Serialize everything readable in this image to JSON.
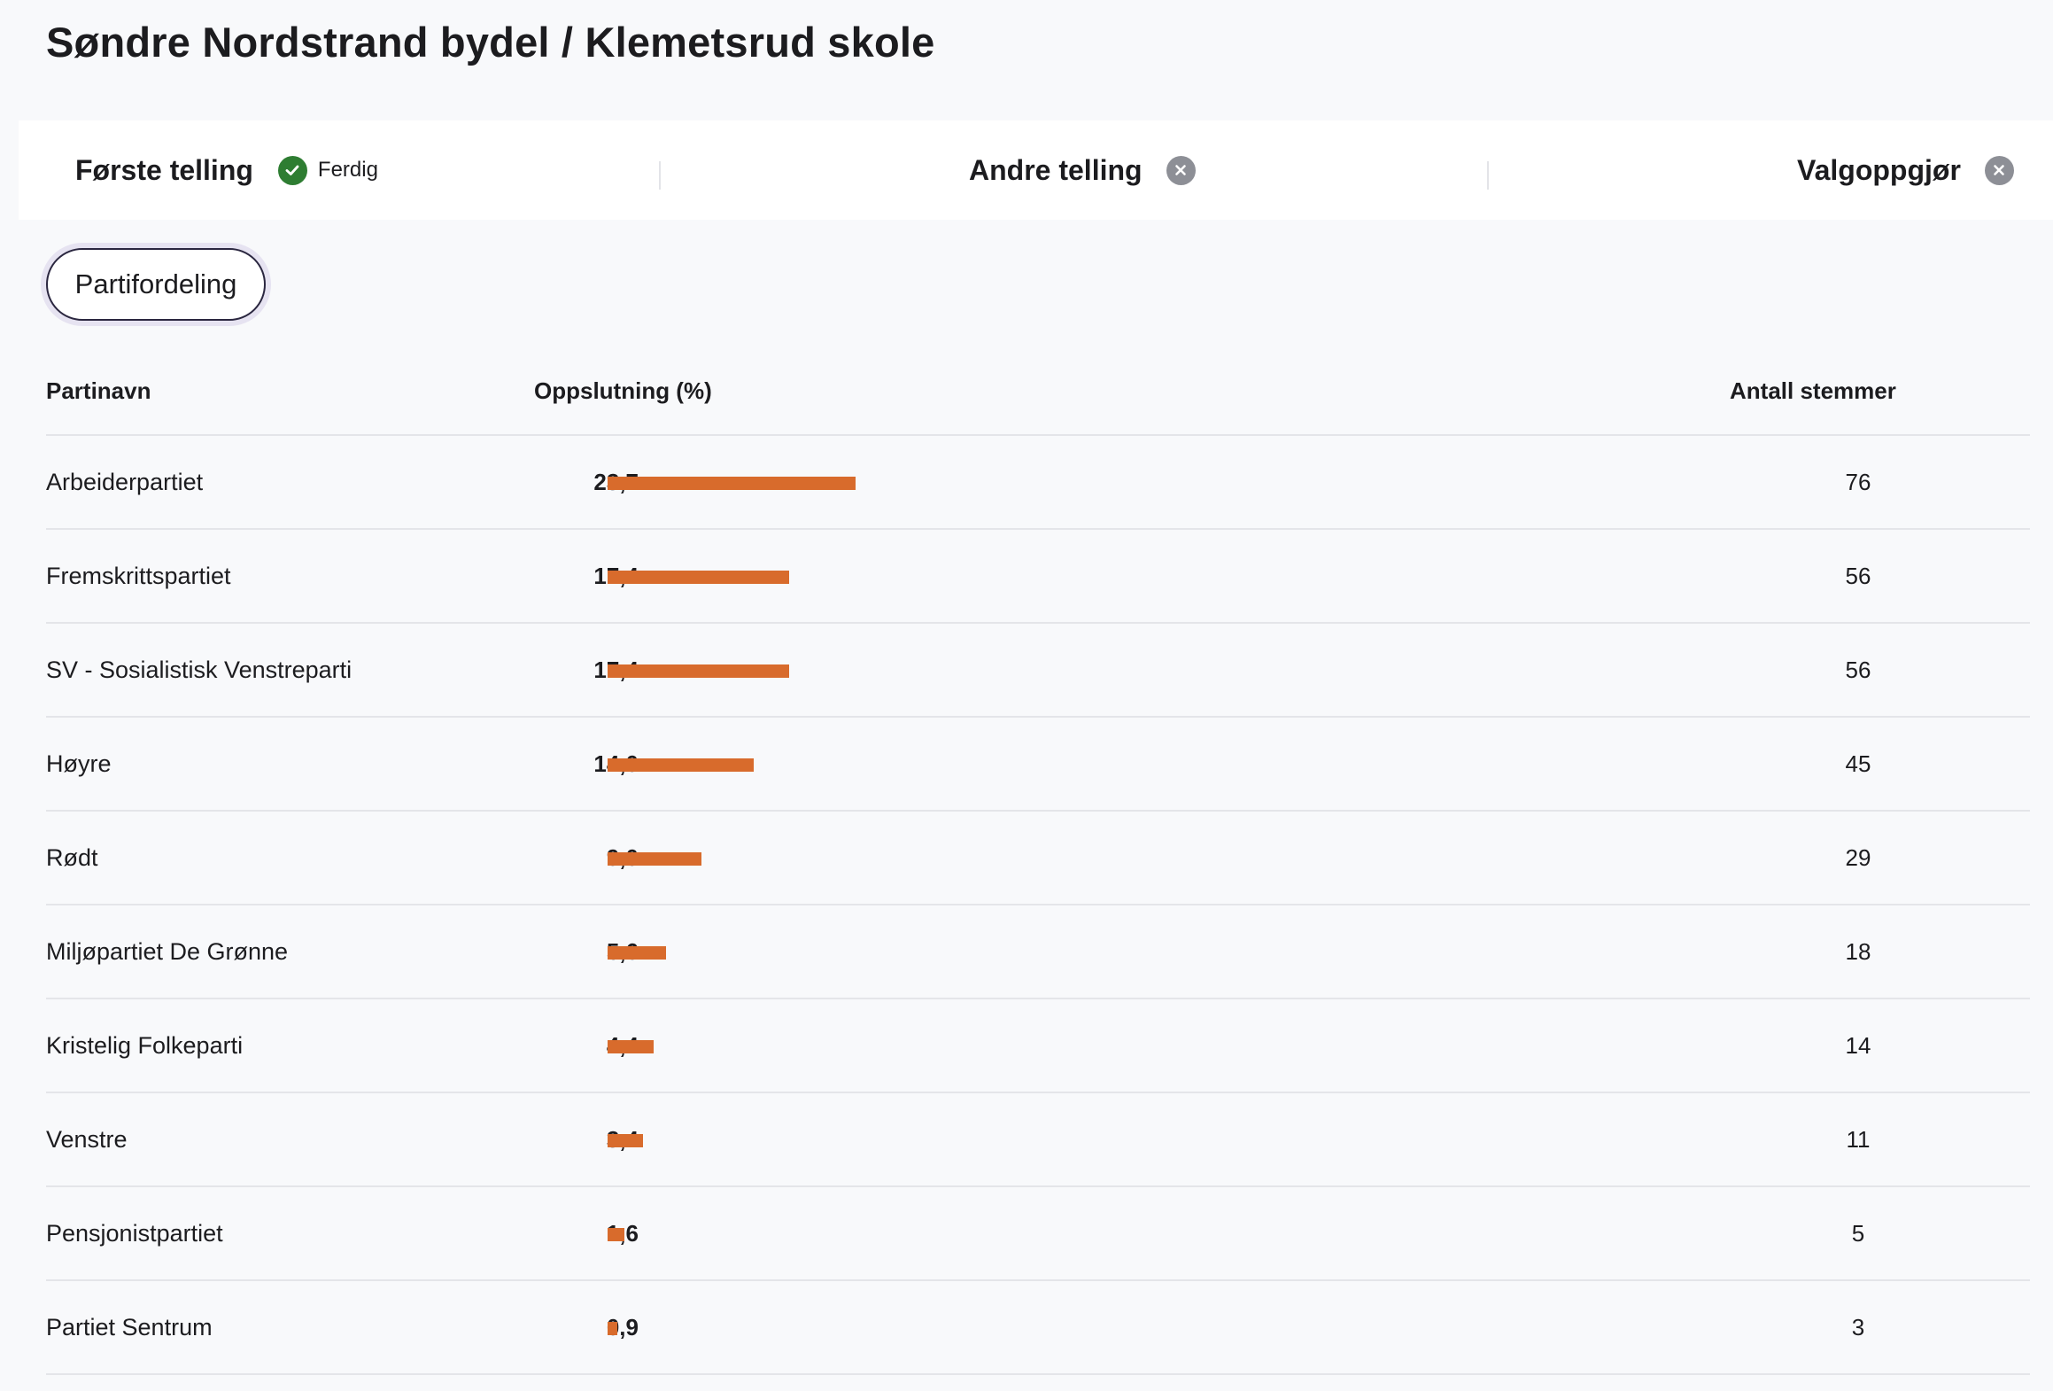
{
  "page": {
    "title": "Søndre Nordstrand bydel / Klemetsrud skole"
  },
  "stages": {
    "first": {
      "label": "Første telling",
      "status": "Ferdig",
      "status_icon": "check-circle-icon"
    },
    "second": {
      "label": "Andre telling",
      "status_icon": "x-circle-icon"
    },
    "settlement": {
      "label": "Valgoppgjør",
      "status_icon": "x-circle-icon"
    }
  },
  "tabs": {
    "active": "Partifordeling"
  },
  "table": {
    "headers": {
      "party": "Partinavn",
      "share": "Oppslutning (%)",
      "votes": "Antall stemmer"
    },
    "bar_color": "#d86b2c",
    "rows": [
      {
        "party": "Arbeiderpartiet",
        "share_label": "23,7",
        "share": 23.7,
        "votes": "76"
      },
      {
        "party": "Fremskrittspartiet",
        "share_label": "17,4",
        "share": 17.4,
        "votes": "56"
      },
      {
        "party": "SV - Sosialistisk Venstreparti",
        "share_label": "17,4",
        "share": 17.4,
        "votes": "56"
      },
      {
        "party": "Høyre",
        "share_label": "14,0",
        "share": 14.0,
        "votes": "45"
      },
      {
        "party": "Rødt",
        "share_label": "9,0",
        "share": 9.0,
        "votes": "29"
      },
      {
        "party": "Miljøpartiet De Grønne",
        "share_label": "5,6",
        "share": 5.6,
        "votes": "18"
      },
      {
        "party": "Kristelig Folkeparti",
        "share_label": "4,4",
        "share": 4.4,
        "votes": "14"
      },
      {
        "party": "Venstre",
        "share_label": "3,4",
        "share": 3.4,
        "votes": "11"
      },
      {
        "party": "Pensjonistpartiet",
        "share_label": "1,6",
        "share": 1.6,
        "votes": "5"
      },
      {
        "party": "Partiet Sentrum",
        "share_label": "0,9",
        "share": 0.9,
        "votes": "3"
      }
    ]
  }
}
